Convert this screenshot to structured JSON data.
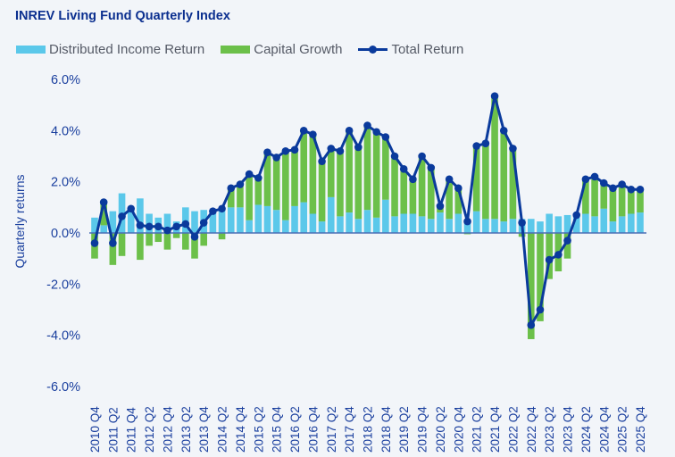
{
  "chart_data": {
    "type": "bar",
    "title": "INREV Living Fund Quarterly Index",
    "xlabel": "",
    "ylabel": "Quarterly returns",
    "ylim": [
      -6,
      6
    ],
    "yticks": [
      "6.0%",
      "4.0%",
      "2.0%",
      "0.0%",
      "-2.0%",
      "-4.0%",
      "-6.0%"
    ],
    "ytick_values": [
      6,
      4,
      2,
      0,
      -2,
      -4,
      -6
    ],
    "grid": false,
    "legend_position": "top-left",
    "stacked": true,
    "categories": [
      "2010 Q4",
      "2011 Q1",
      "2011 Q2",
      "2011 Q3",
      "2011 Q4",
      "2012 Q1",
      "2012 Q2",
      "2012 Q3",
      "2012 Q4",
      "2013 Q1",
      "2013 Q2",
      "2013 Q3",
      "2013 Q4",
      "2014 Q1",
      "2014 Q2",
      "2014 Q3",
      "2014 Q4",
      "2015 Q1",
      "2015 Q2",
      "2015 Q3",
      "2015 Q4",
      "2016 Q1",
      "2016 Q2",
      "2016 Q3",
      "2016 Q4",
      "2017 Q1",
      "2017 Q2",
      "2017 Q3",
      "2017 Q4",
      "2018 Q1",
      "2018 Q2",
      "2018 Q3",
      "2018 Q4",
      "2019 Q1",
      "2019 Q2",
      "2019 Q3",
      "2019 Q4",
      "2020 Q1",
      "2020 Q2",
      "2020 Q3",
      "2020 Q4",
      "2021 Q1",
      "2021 Q2",
      "2021 Q3",
      "2021 Q4",
      "2022 Q1",
      "2022 Q2",
      "2022 Q3",
      "2022 Q4",
      "2023 Q1",
      "2023 Q2",
      "2023 Q3",
      "2023 Q4",
      "2024 Q1",
      "2024 Q2",
      "2024 Q3",
      "2024 Q4",
      "2025 Q1",
      "2025 Q2",
      "2025 Q3",
      "2025 Q4"
    ],
    "tick_every": 2,
    "series": [
      {
        "name": "Distributed Income Return",
        "type": "bar",
        "color": "#5bc8ea",
        "values": [
          0.6,
          0.3,
          0.85,
          1.55,
          0.95,
          1.35,
          0.75,
          0.6,
          0.75,
          0.45,
          1.0,
          0.85,
          0.9,
          0.85,
          0.95,
          1.0,
          1.0,
          0.5,
          1.1,
          1.05,
          0.9,
          0.5,
          1.05,
          1.2,
          0.75,
          0.45,
          1.4,
          0.65,
          0.8,
          0.55,
          0.9,
          0.6,
          1.3,
          0.65,
          0.75,
          0.75,
          0.65,
          0.55,
          0.8,
          0.55,
          0.75,
          0.5,
          0.85,
          0.55,
          0.55,
          0.45,
          0.55,
          0.55,
          0.55,
          0.45,
          0.75,
          0.65,
          0.7,
          0.65,
          0.75,
          0.65,
          0.95,
          0.45,
          0.65,
          0.75,
          0.8
        ]
      },
      {
        "name": "Capital Growth",
        "type": "bar",
        "color": "#6cc04a",
        "values": [
          -1.0,
          0.9,
          -1.25,
          -0.9,
          0.0,
          -1.05,
          -0.5,
          -0.35,
          -0.65,
          -0.2,
          -0.65,
          -1.0,
          -0.5,
          0.0,
          -0.25,
          0.75,
          0.9,
          1.8,
          1.05,
          2.1,
          2.05,
          2.7,
          2.2,
          2.8,
          3.1,
          2.35,
          1.9,
          2.55,
          3.2,
          2.8,
          3.3,
          3.35,
          2.45,
          2.35,
          1.75,
          1.35,
          2.35,
          2.0,
          0.25,
          1.55,
          1.0,
          -0.05,
          2.55,
          2.95,
          4.8,
          3.55,
          2.75,
          -0.15,
          -4.15,
          -3.45,
          -1.8,
          -1.5,
          -1.0,
          0.05,
          1.35,
          1.55,
          1.0,
          1.3,
          1.25,
          0.95,
          0.9
        ]
      },
      {
        "name": "Total Return",
        "type": "line",
        "color": "#0a3a9c",
        "values": [
          -0.4,
          1.2,
          -0.4,
          0.65,
          0.95,
          0.3,
          0.25,
          0.25,
          0.1,
          0.25,
          0.35,
          -0.15,
          0.4,
          0.85,
          0.95,
          1.75,
          1.9,
          2.3,
          2.15,
          3.15,
          2.95,
          3.2,
          3.25,
          4.0,
          3.85,
          2.8,
          3.3,
          3.2,
          4.0,
          3.35,
          4.2,
          3.95,
          3.75,
          3.0,
          2.5,
          2.1,
          3.0,
          2.55,
          1.05,
          2.1,
          1.75,
          0.45,
          3.4,
          3.5,
          5.35,
          4.0,
          3.3,
          0.4,
          -3.6,
          -3.0,
          -1.05,
          -0.85,
          -0.3,
          0.7,
          2.1,
          2.2,
          1.95,
          1.75,
          1.9,
          1.7,
          1.7
        ]
      }
    ]
  }
}
